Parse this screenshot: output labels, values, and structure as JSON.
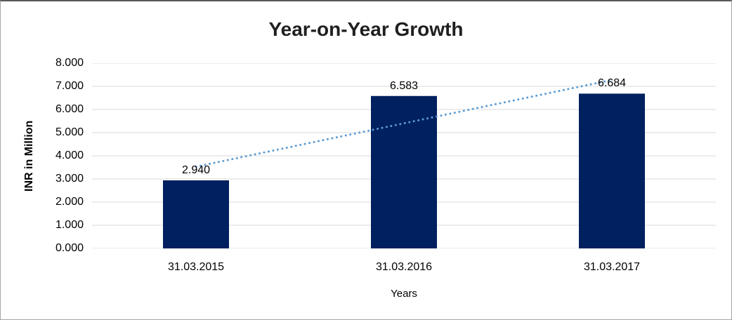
{
  "chart_data": {
    "type": "bar",
    "title": "Year-on-Year Growth",
    "categories": [
      "31.03.2015",
      "31.03.2016",
      "31.03.2017"
    ],
    "values": [
      2.94,
      6.583,
      6.684
    ],
    "data_labels": [
      "2.940",
      "6.583",
      "6.684"
    ],
    "xlabel": "Years",
    "ylabel": "INR in Million",
    "ylim": [
      0,
      8
    ],
    "ytick_step": 1,
    "ytick_labels": [
      "0.000",
      "1.000",
      "2.000",
      "3.000",
      "4.000",
      "5.000",
      "6.000",
      "7.000",
      "8.000"
    ],
    "grid": true,
    "legend": "none",
    "bar_color": "#002060",
    "gridline_color": "#D9D9D9",
    "axis_line_color": "#D9D9D9",
    "text_color": "#000000",
    "title_color": "#1F1F1F",
    "trendline": {
      "type": "linear",
      "style": "dotted",
      "color": "#5B9BD5"
    }
  }
}
